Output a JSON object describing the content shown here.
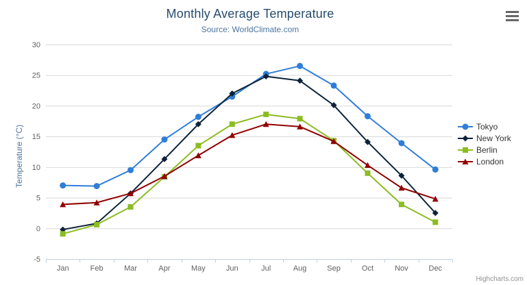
{
  "header": {
    "title": "Monthly Average Temperature",
    "subtitle": "Source: WorldClimate.com"
  },
  "toolbar": {
    "export_menu_icon": "hamburger-icon"
  },
  "credits": {
    "label": "Highcharts.com"
  },
  "chart_data": {
    "type": "line",
    "title": "Monthly Average Temperature",
    "subtitle": "Source: WorldClimate.com",
    "categories": [
      "Jan",
      "Feb",
      "Mar",
      "Apr",
      "May",
      "Jun",
      "Jul",
      "Aug",
      "Sep",
      "Oct",
      "Nov",
      "Dec"
    ],
    "series": [
      {
        "name": "Tokyo",
        "color": "#2f7ed8",
        "marker": "circle",
        "values": [
          7.0,
          6.9,
          9.5,
          14.5,
          18.2,
          21.5,
          25.2,
          26.5,
          23.3,
          18.3,
          13.9,
          9.6
        ]
      },
      {
        "name": "New York",
        "color": "#0d233a",
        "marker": "diamond",
        "values": [
          -0.2,
          0.8,
          5.7,
          11.3,
          17.0,
          22.0,
          24.8,
          24.1,
          20.1,
          14.1,
          8.6,
          2.5
        ]
      },
      {
        "name": "Berlin",
        "color": "#8bbc21",
        "marker": "square",
        "values": [
          -0.9,
          0.6,
          3.5,
          8.4,
          13.5,
          17.0,
          18.6,
          17.9,
          14.3,
          9.0,
          3.9,
          1.0
        ]
      },
      {
        "name": "London",
        "color": "#910000",
        "marker": "triangle",
        "values": [
          3.9,
          4.2,
          5.7,
          8.5,
          11.9,
          15.2,
          17.0,
          16.6,
          14.2,
          10.3,
          6.6,
          4.8
        ]
      }
    ],
    "xlabel": "",
    "ylabel": "Temperature (°C)",
    "ylim": [
      -5,
      30
    ],
    "yticks": [
      -5,
      0,
      5,
      10,
      15,
      20,
      25,
      30
    ],
    "grid": true,
    "legend_position": "right",
    "axis_colors": {
      "grid_line": "#d8d8d8",
      "axis_line": "#c0d0e0",
      "tick_label": "#606060"
    }
  }
}
